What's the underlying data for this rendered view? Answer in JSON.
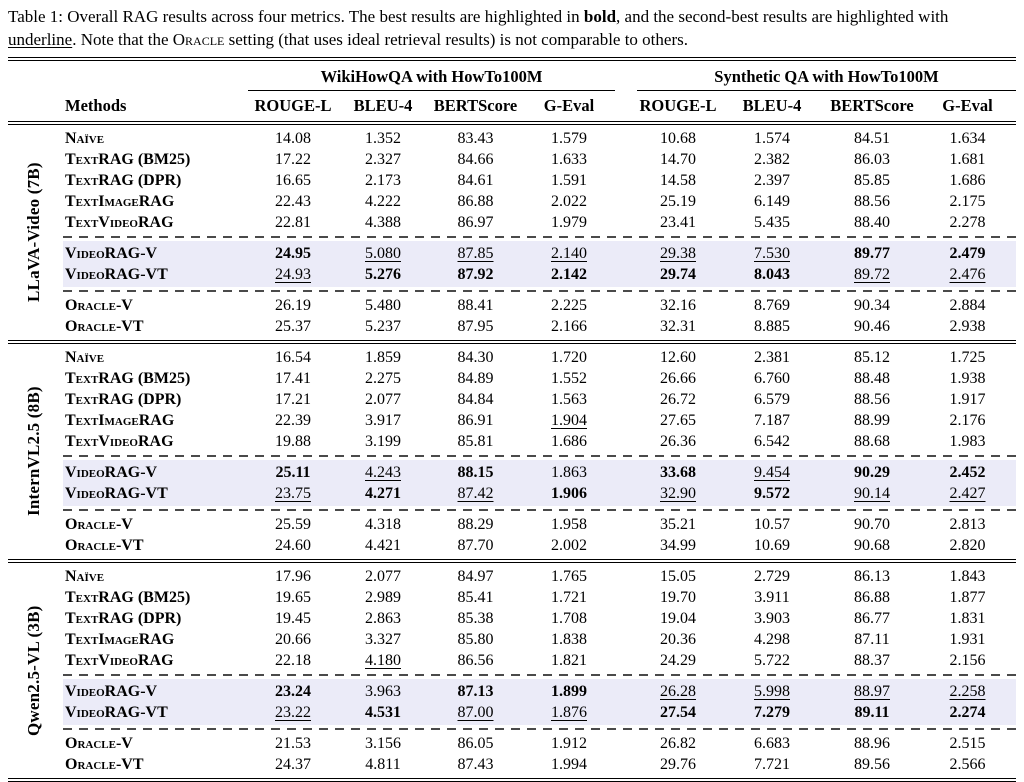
{
  "colors": {
    "highlight_row": "#ebebf8",
    "rule": "#000000",
    "dashed": "#4a4a4a"
  },
  "caption": {
    "p1": "Table 1: Overall RAG results across four metrics. The best results are highlighted in ",
    "bold_word": "bold",
    "p2": ", and the second-best results are highlighted with ",
    "underline_word": "underline",
    "p3": ". Note that the ",
    "oracle_word": "Oracle",
    "p4": " setting (that uses ideal retrieval results) is not comparable to others."
  },
  "table": {
    "methods_header": "Methods",
    "col_groups": [
      "WikiHowQA with HowTo100M",
      "Synthetic QA with HowTo100M"
    ],
    "metric_headers": [
      "ROUGE-L",
      "BLEU-4",
      "BERTScore",
      "G-Eval"
    ],
    "format_legend": {
      "b": "best (bold)",
      "u": "second-best (underline)"
    },
    "groups": [
      {
        "model": "LLaVA-Video (7B)",
        "sections": [
          {
            "type": "plain",
            "rows": [
              {
                "m": "Naïve",
                "v": [
                  "14.08",
                  "1.352",
                  "83.43",
                  "1.579",
                  "10.68",
                  "1.574",
                  "84.51",
                  "1.634"
                ]
              },
              {
                "m": "TextRAG (BM25)",
                "v": [
                  "17.22",
                  "2.327",
                  "84.66",
                  "1.633",
                  "14.70",
                  "2.382",
                  "86.03",
                  "1.681"
                ]
              },
              {
                "m": "TextRAG (DPR)",
                "v": [
                  "16.65",
                  "2.173",
                  "84.61",
                  "1.591",
                  "14.58",
                  "2.397",
                  "85.85",
                  "1.686"
                ]
              },
              {
                "m": "TextImageRAG",
                "v": [
                  "22.43",
                  "4.222",
                  "86.88",
                  "2.022",
                  "25.19",
                  "6.149",
                  "88.56",
                  "2.175"
                ]
              },
              {
                "m": "TextVideoRAG",
                "v": [
                  "22.81",
                  "4.388",
                  "86.97",
                  "1.979",
                  "23.41",
                  "5.435",
                  "88.40",
                  "2.278"
                ]
              }
            ]
          },
          {
            "type": "highlight",
            "rows": [
              {
                "m": "VideoRAG-V",
                "v": [
                  "24.95",
                  "5.080",
                  "87.85",
                  "2.140",
                  "29.38",
                  "7.530",
                  "89.77",
                  "2.479"
                ],
                "f": [
                  "b",
                  "u",
                  "u",
                  "u",
                  "u",
                  "u",
                  "b",
                  "b"
                ]
              },
              {
                "m": "VideoRAG-VT",
                "v": [
                  "24.93",
                  "5.276",
                  "87.92",
                  "2.142",
                  "29.74",
                  "8.043",
                  "89.72",
                  "2.476"
                ],
                "f": [
                  "u",
                  "b",
                  "b",
                  "b",
                  "b",
                  "b",
                  "u",
                  "u"
                ]
              }
            ]
          },
          {
            "type": "plain",
            "rows": [
              {
                "m": "Oracle-V",
                "v": [
                  "26.19",
                  "5.480",
                  "88.41",
                  "2.225",
                  "32.16",
                  "8.769",
                  "90.34",
                  "2.884"
                ]
              },
              {
                "m": "Oracle-VT",
                "v": [
                  "25.37",
                  "5.237",
                  "87.95",
                  "2.166",
                  "32.31",
                  "8.885",
                  "90.46",
                  "2.938"
                ]
              }
            ]
          }
        ]
      },
      {
        "model": "InternVL2.5 (8B)",
        "sections": [
          {
            "type": "plain",
            "rows": [
              {
                "m": "Naïve",
                "v": [
                  "16.54",
                  "1.859",
                  "84.30",
                  "1.720",
                  "12.60",
                  "2.381",
                  "85.12",
                  "1.725"
                ]
              },
              {
                "m": "TextRAG (BM25)",
                "v": [
                  "17.41",
                  "2.275",
                  "84.89",
                  "1.552",
                  "26.66",
                  "6.760",
                  "88.48",
                  "1.938"
                ]
              },
              {
                "m": "TextRAG (DPR)",
                "v": [
                  "17.21",
                  "2.077",
                  "84.84",
                  "1.563",
                  "26.72",
                  "6.579",
                  "88.56",
                  "1.917"
                ]
              },
              {
                "m": "TextImageRAG",
                "v": [
                  "22.39",
                  "3.917",
                  "86.91",
                  "1.904",
                  "27.65",
                  "7.187",
                  "88.99",
                  "2.176"
                ],
                "f": [
                  "",
                  "",
                  "",
                  "u",
                  "",
                  "",
                  "",
                  ""
                ]
              },
              {
                "m": "TextVideoRAG",
                "v": [
                  "19.88",
                  "3.199",
                  "85.81",
                  "1.686",
                  "26.36",
                  "6.542",
                  "88.68",
                  "1.983"
                ]
              }
            ]
          },
          {
            "type": "highlight",
            "rows": [
              {
                "m": "VideoRAG-V",
                "v": [
                  "25.11",
                  "4.243",
                  "88.15",
                  "1.863",
                  "33.68",
                  "9.454",
                  "90.29",
                  "2.452"
                ],
                "f": [
                  "b",
                  "u",
                  "b",
                  "",
                  "b",
                  "u",
                  "b",
                  "b"
                ]
              },
              {
                "m": "VideoRAG-VT",
                "v": [
                  "23.75",
                  "4.271",
                  "87.42",
                  "1.906",
                  "32.90",
                  "9.572",
                  "90.14",
                  "2.427"
                ],
                "f": [
                  "u",
                  "b",
                  "u",
                  "b",
                  "u",
                  "b",
                  "u",
                  "u"
                ]
              }
            ]
          },
          {
            "type": "plain",
            "rows": [
              {
                "m": "Oracle-V",
                "v": [
                  "25.59",
                  "4.318",
                  "88.29",
                  "1.958",
                  "35.21",
                  "10.57",
                  "90.70",
                  "2.813"
                ]
              },
              {
                "m": "Oracle-VT",
                "v": [
                  "24.60",
                  "4.421",
                  "87.70",
                  "2.002",
                  "34.99",
                  "10.69",
                  "90.68",
                  "2.820"
                ]
              }
            ]
          }
        ]
      },
      {
        "model": "Qwen2.5-VL (3B)",
        "sections": [
          {
            "type": "plain",
            "rows": [
              {
                "m": "Naïve",
                "v": [
                  "17.96",
                  "2.077",
                  "84.97",
                  "1.765",
                  "15.05",
                  "2.729",
                  "86.13",
                  "1.843"
                ]
              },
              {
                "m": "TextRAG (BM25)",
                "v": [
                  "19.65",
                  "2.989",
                  "85.41",
                  "1.721",
                  "19.70",
                  "3.911",
                  "86.88",
                  "1.877"
                ]
              },
              {
                "m": "TextRAG (DPR)",
                "v": [
                  "19.45",
                  "2.863",
                  "85.38",
                  "1.708",
                  "19.04",
                  "3.903",
                  "86.77",
                  "1.831"
                ]
              },
              {
                "m": "TextImageRAG",
                "v": [
                  "20.66",
                  "3.327",
                  "85.80",
                  "1.838",
                  "20.36",
                  "4.298",
                  "87.11",
                  "1.931"
                ]
              },
              {
                "m": "TextVideoRAG",
                "v": [
                  "22.18",
                  "4.180",
                  "86.56",
                  "1.821",
                  "24.29",
                  "5.722",
                  "88.37",
                  "2.156"
                ],
                "f": [
                  "",
                  "u",
                  "",
                  "",
                  "",
                  "",
                  "",
                  ""
                ]
              }
            ]
          },
          {
            "type": "highlight",
            "rows": [
              {
                "m": "VideoRAG-V",
                "v": [
                  "23.24",
                  "3.963",
                  "87.13",
                  "1.899",
                  "26.28",
                  "5.998",
                  "88.97",
                  "2.258"
                ],
                "f": [
                  "b",
                  "",
                  "b",
                  "b",
                  "u",
                  "u",
                  "u",
                  "u"
                ]
              },
              {
                "m": "VideoRAG-VT",
                "v": [
                  "23.22",
                  "4.531",
                  "87.00",
                  "1.876",
                  "27.54",
                  "7.279",
                  "89.11",
                  "2.274"
                ],
                "f": [
                  "u",
                  "b",
                  "u",
                  "u",
                  "b",
                  "b",
                  "b",
                  "b"
                ]
              }
            ]
          },
          {
            "type": "plain",
            "rows": [
              {
                "m": "Oracle-V",
                "v": [
                  "21.53",
                  "3.156",
                  "86.05",
                  "1.912",
                  "26.82",
                  "6.683",
                  "88.96",
                  "2.515"
                ]
              },
              {
                "m": "Oracle-VT",
                "v": [
                  "24.37",
                  "4.811",
                  "87.43",
                  "1.994",
                  "29.76",
                  "7.721",
                  "89.56",
                  "2.566"
                ]
              }
            ]
          }
        ]
      }
    ]
  }
}
